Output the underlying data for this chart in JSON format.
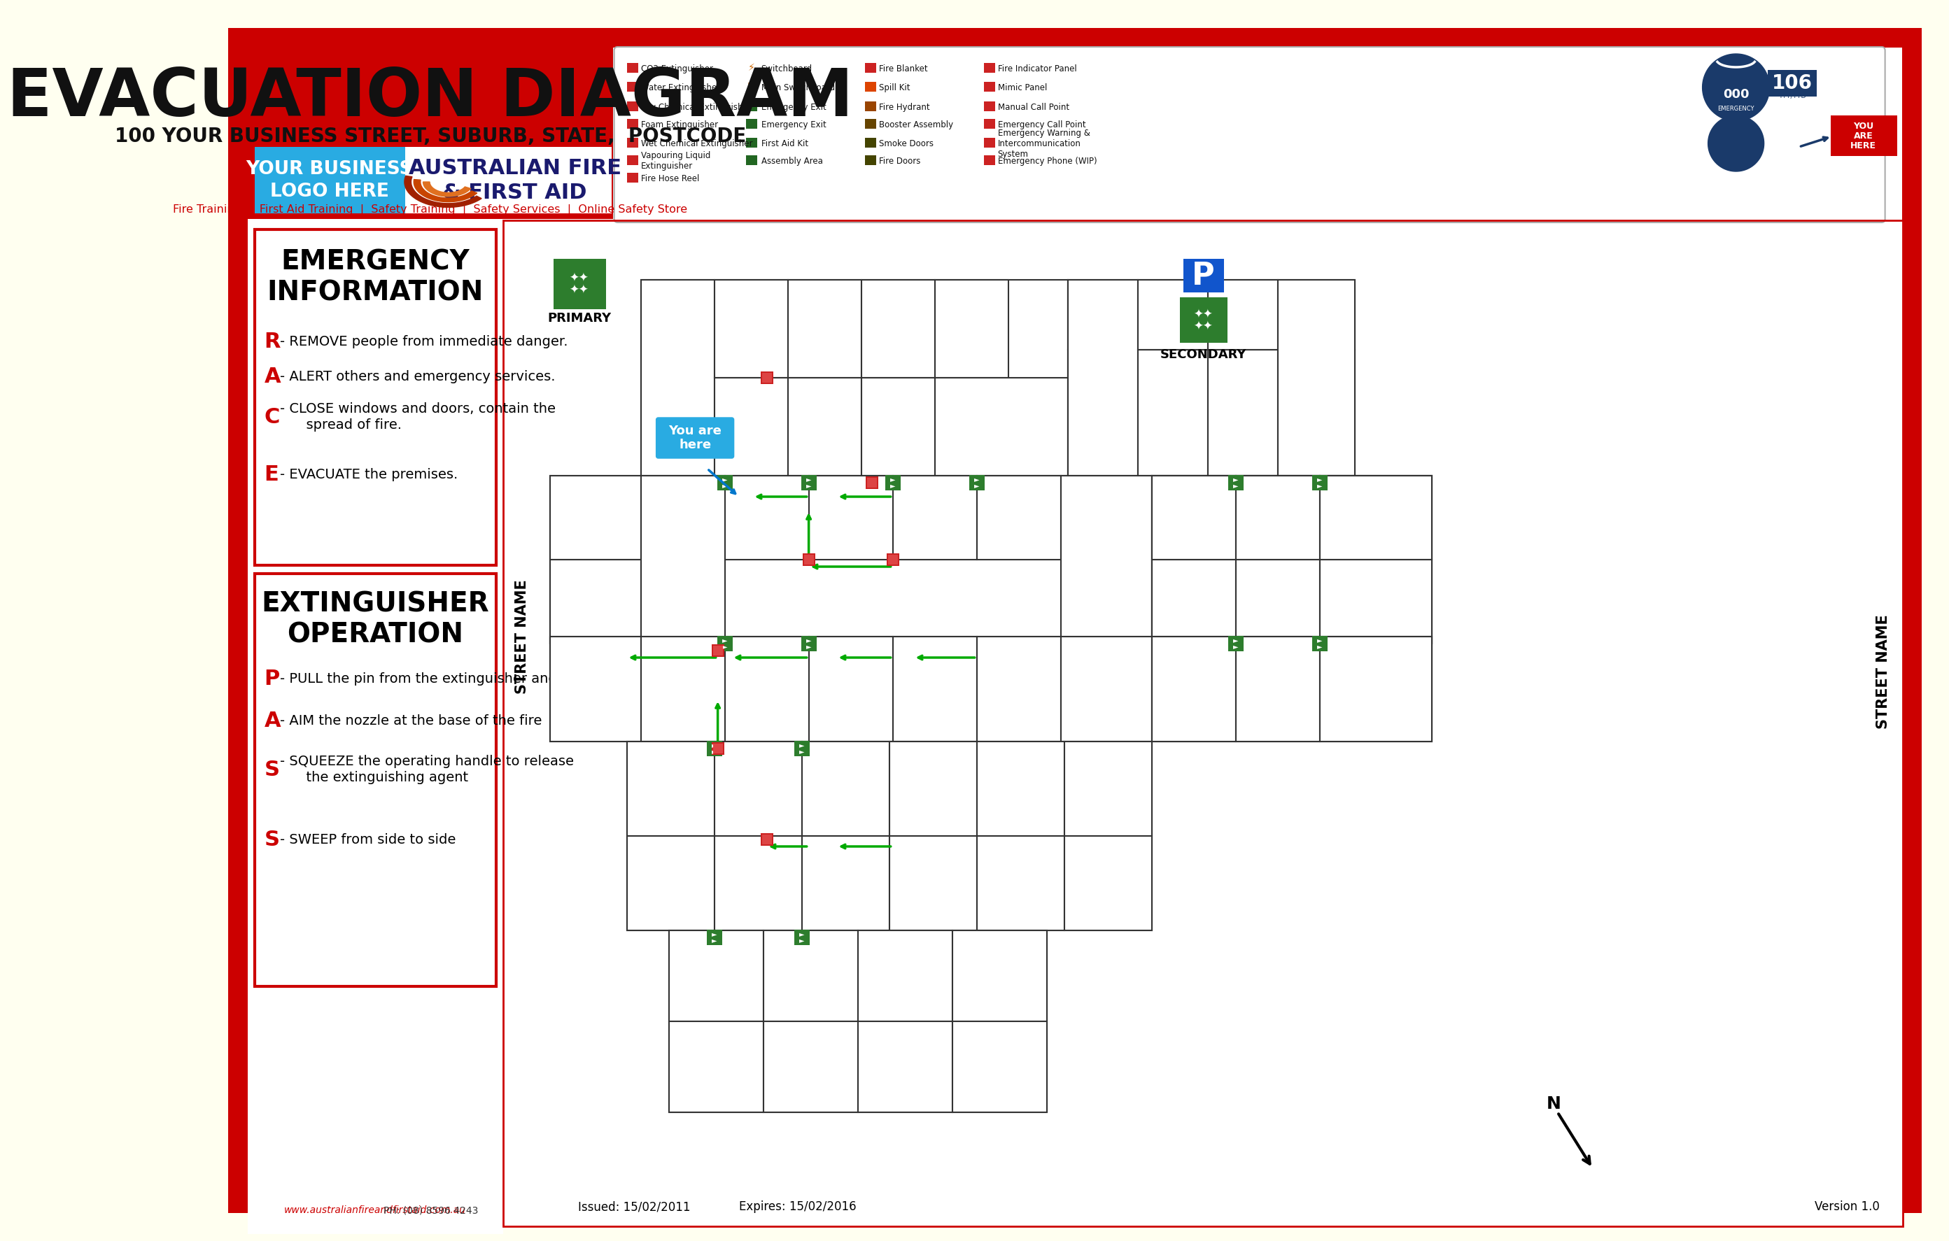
{
  "bg_color": "#cc0000",
  "title": "EVACUATION DIAGRAM",
  "subtitle": "100 YOUR BUSINESS STREET, SUBURB, STATE,  POSTCODE",
  "logo_box_color": "#29abe2",
  "logo_text": "YOUR BUSINESS\nLOGO HERE",
  "company_name": "AUSTRALIAN FIRE\n& FIRST AID",
  "tagline": "Fire Training  |  First Aid Training  |  Safety Training  |  Safety Services  |  Online Safety Store",
  "emergency_info_title": "EMERGENCY\nINFORMATION",
  "race_items": [
    [
      "R",
      " - REMOVE people from immediate danger."
    ],
    [
      "A",
      " - ALERT others and emergency services."
    ],
    [
      "C",
      " - CLOSE windows and doors, contain the\n      spread of fire."
    ],
    [
      "E",
      " - EVACUATE the premises."
    ]
  ],
  "extinguisher_title": "EXTINGUISHER\nOPERATION",
  "pass_items": [
    [
      "P",
      " - PULL the pin from the extinguisher and test"
    ],
    [
      "A",
      " - AIM the nozzle at the base of the fire"
    ],
    [
      "S",
      " - SQUEEZE the operating handle to release\n      the extinguishing agent"
    ],
    [
      "S",
      " - SWEEP from side to side"
    ]
  ],
  "footer_website": "www.australianfireandfirstaid.com.au",
  "footer_phone": "PH: (08) 8596 4243",
  "issued": "Issued: 15/02/2011",
  "expires": "Expires: 15/02/2016",
  "version": "Version 1.0",
  "street_name_left": "STREET NAME",
  "street_name_right": "STREET NAME",
  "you_are_here": "You are\nhere",
  "primary_label": "PRIMARY",
  "secondary_label": "SECONDARY",
  "red": "#cc0000",
  "dark_red": "#aa0000",
  "cream": "#fffff0",
  "white": "#ffffff",
  "dark_blue": "#1a3a6a",
  "cyan": "#29abe2",
  "dark_green": "#2d7d2d",
  "orange": "#e07020"
}
